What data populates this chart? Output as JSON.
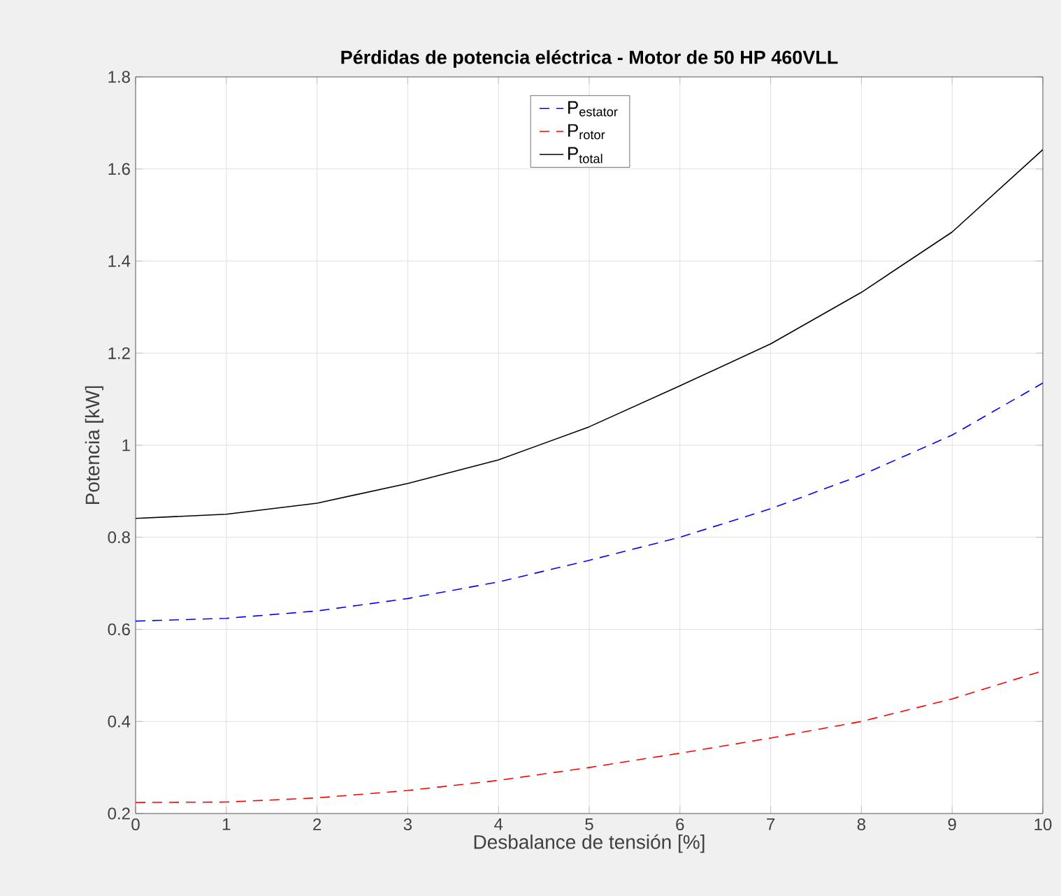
{
  "chart_data": {
    "type": "line",
    "title": "Pérdidas de potencia eléctrica - Motor de 50 HP 460VLL",
    "xlabel": "Desbalance de tensión [%]",
    "ylabel": "Potencia [kW]",
    "x": [
      0,
      1,
      2,
      3,
      4,
      5,
      6,
      7,
      8,
      9,
      10
    ],
    "series": [
      {
        "name": "P$_{estator}$",
        "color": "#0000ff",
        "line_style": "dashed",
        "values": [
          0.618,
          0.624,
          0.64,
          0.667,
          0.703,
          0.75,
          0.8,
          0.862,
          0.935,
          1.022,
          1.135
        ]
      },
      {
        "name": "P$_{rotor}$",
        "color": "#ff0000",
        "line_style": "dashed",
        "values": [
          0.224,
          0.225,
          0.234,
          0.25,
          0.272,
          0.3,
          0.331,
          0.364,
          0.4,
          0.449,
          0.51
        ]
      },
      {
        "name": "P$_{total}$",
        "color": "#000000",
        "line_style": "solid",
        "values": [
          0.841,
          0.85,
          0.874,
          0.917,
          0.968,
          1.04,
          1.129,
          1.22,
          1.332,
          1.463,
          1.642
        ]
      }
    ],
    "xlim": [
      0,
      10
    ],
    "xticks": [
      0,
      1,
      2,
      3,
      4,
      5,
      6,
      7,
      8,
      9,
      10
    ],
    "ylim": [
      0.2,
      1.8
    ],
    "yticks": [
      0.2,
      0.4,
      0.6,
      0.8,
      1,
      1.2,
      1.4,
      1.6,
      1.8
    ],
    "grid": true,
    "legend": "top",
    "marker": "none"
  }
}
